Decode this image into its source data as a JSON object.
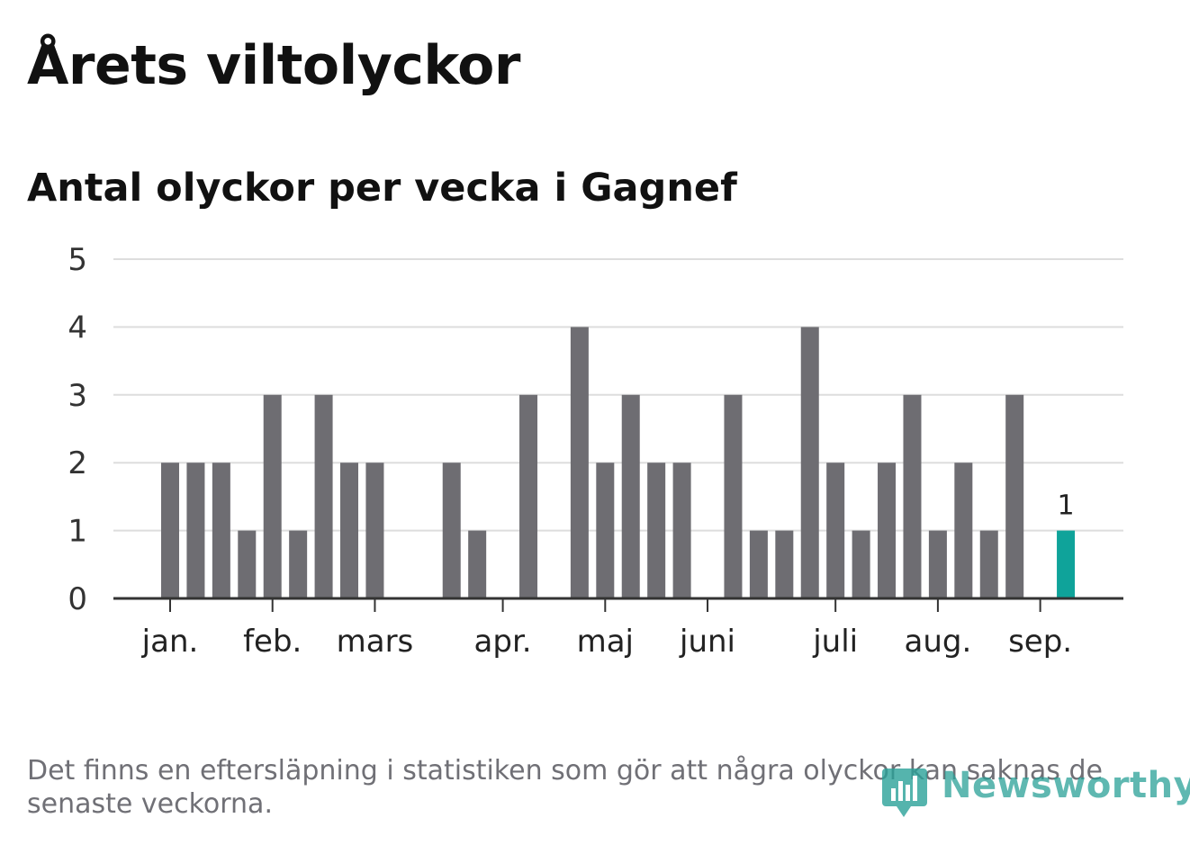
{
  "header": {
    "title": "Årets viltolyckor",
    "subtitle": "Antal olyckor per vecka i Gagnef"
  },
  "footer": {
    "note": "Det finns en eftersläpning i statistiken som gör att några olyckor kan saknas de senaste veckorna."
  },
  "brand": {
    "name": "Newsworthy",
    "icon": "chart-speech-bubble-icon",
    "color": "#2aa198"
  },
  "chart_data": {
    "type": "bar",
    "ylim": [
      0,
      5
    ],
    "yticks": [
      "0",
      "1",
      "2",
      "3",
      "4",
      "5"
    ],
    "grid": true,
    "months": [
      "jan.",
      "feb.",
      "mars",
      "apr.",
      "maj",
      "juni",
      "juli",
      "aug.",
      "sep."
    ],
    "month_start_week": [
      1,
      5,
      9,
      14,
      18,
      22,
      27,
      31,
      35
    ],
    "weeks": [
      1,
      2,
      3,
      4,
      5,
      6,
      7,
      8,
      9,
      10,
      11,
      12,
      13,
      14,
      15,
      16,
      17,
      18,
      19,
      20,
      21,
      22,
      23,
      24,
      25,
      26,
      27,
      28,
      29,
      30,
      31,
      32,
      33,
      34,
      35,
      36
    ],
    "values": [
      2,
      2,
      2,
      1,
      3,
      1,
      3,
      2,
      2,
      0,
      0,
      2,
      1,
      0,
      3,
      0,
      4,
      2,
      3,
      2,
      2,
      0,
      3,
      1,
      1,
      4,
      2,
      1,
      2,
      3,
      1,
      2,
      1,
      3,
      0,
      1
    ],
    "highlight_index": 35,
    "highlight_label": "1",
    "colors": {
      "bar": "#6e6d72",
      "highlight": "#0fa39a",
      "grid": "#dddddd",
      "axis": "#333333"
    }
  }
}
